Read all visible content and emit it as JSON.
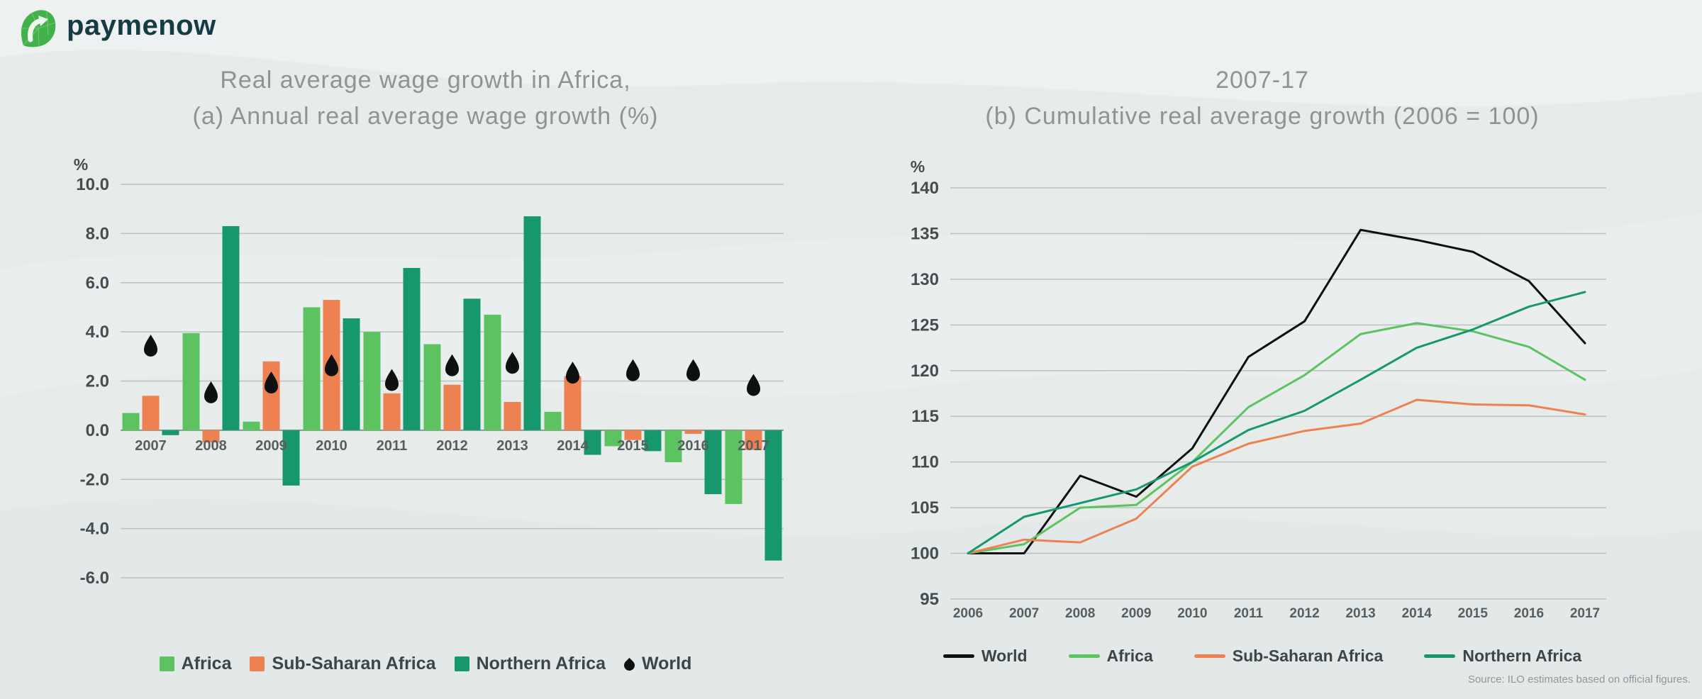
{
  "brand": {
    "name": "paymenow",
    "wordmark_color": "#173b42",
    "icon_color": "#43b14b"
  },
  "background_color": "#e7eceb",
  "source_note": "Source: ILO estimates based on official figures.",
  "chart_data": [
    {
      "type": "bar",
      "title": "Real average wage growth in Africa,",
      "subtitle": "(a) Annual real average wage growth (%)",
      "ylabel": "%",
      "ylim": [
        -6,
        10
      ],
      "ytick_step": 2,
      "ytick_format": "fixed1",
      "grid": true,
      "legend_position": "bottom",
      "categories": [
        "2007",
        "2008",
        "2009",
        "2010",
        "2011",
        "2012",
        "2013",
        "2014",
        "2015",
        "2016",
        "2017"
      ],
      "series": [
        {
          "name": "Africa",
          "color": "#5cc360",
          "values": [
            0.7,
            3.95,
            0.35,
            5.0,
            4.0,
            3.5,
            4.7,
            0.75,
            -0.65,
            -1.3,
            -3.0
          ]
        },
        {
          "name": "Sub-Saharan Africa",
          "color": "#ee8152",
          "values": [
            1.4,
            -0.5,
            2.8,
            5.3,
            1.5,
            1.85,
            1.15,
            2.2,
            -0.4,
            -0.15,
            -0.8
          ]
        },
        {
          "name": "Northern Africa",
          "color": "#17976d",
          "values": [
            -0.2,
            8.3,
            -2.25,
            4.55,
            6.6,
            5.35,
            8.7,
            -1.0,
            -0.85,
            -2.6,
            -5.3
          ]
        },
        {
          "name": "World",
          "marker": "droplet",
          "color": "#0f1010",
          "values": [
            3.4,
            1.5,
            1.9,
            2.6,
            2.0,
            2.6,
            2.7,
            2.3,
            2.4,
            2.4,
            1.8
          ]
        }
      ]
    },
    {
      "type": "line",
      "title": "2007-17",
      "subtitle": "(b) Cumulative real average growth (2006 = 100)",
      "ylabel": "%",
      "ylim": [
        95,
        140
      ],
      "ytick_step": 5,
      "ytick_format": "int",
      "grid": true,
      "legend_position": "bottom",
      "x": [
        "2006",
        "2007",
        "2008",
        "2009",
        "2010",
        "2011",
        "2012",
        "2013",
        "2014",
        "2015",
        "2016",
        "2017"
      ],
      "series": [
        {
          "name": "World",
          "color": "#0f1010",
          "values": [
            100,
            100,
            108.5,
            106.2,
            111.5,
            121.5,
            125.4,
            135.4,
            134.3,
            133.0,
            129.8,
            123.0
          ]
        },
        {
          "name": "Africa",
          "color": "#5cc360",
          "values": [
            100,
            101.0,
            105.0,
            105.3,
            110.0,
            116.0,
            119.5,
            124.0,
            125.2,
            124.3,
            122.6,
            119.0
          ]
        },
        {
          "name": "Sub-Saharan Africa",
          "color": "#ee8152",
          "values": [
            100,
            101.5,
            101.2,
            103.8,
            109.5,
            112.0,
            113.4,
            114.2,
            116.8,
            116.3,
            116.2,
            115.2
          ]
        },
        {
          "name": "Northern Africa",
          "color": "#17976d",
          "values": [
            100,
            104.0,
            105.5,
            107.0,
            110.0,
            113.5,
            115.6,
            119.0,
            122.5,
            124.5,
            127.0,
            128.6
          ]
        }
      ]
    }
  ]
}
